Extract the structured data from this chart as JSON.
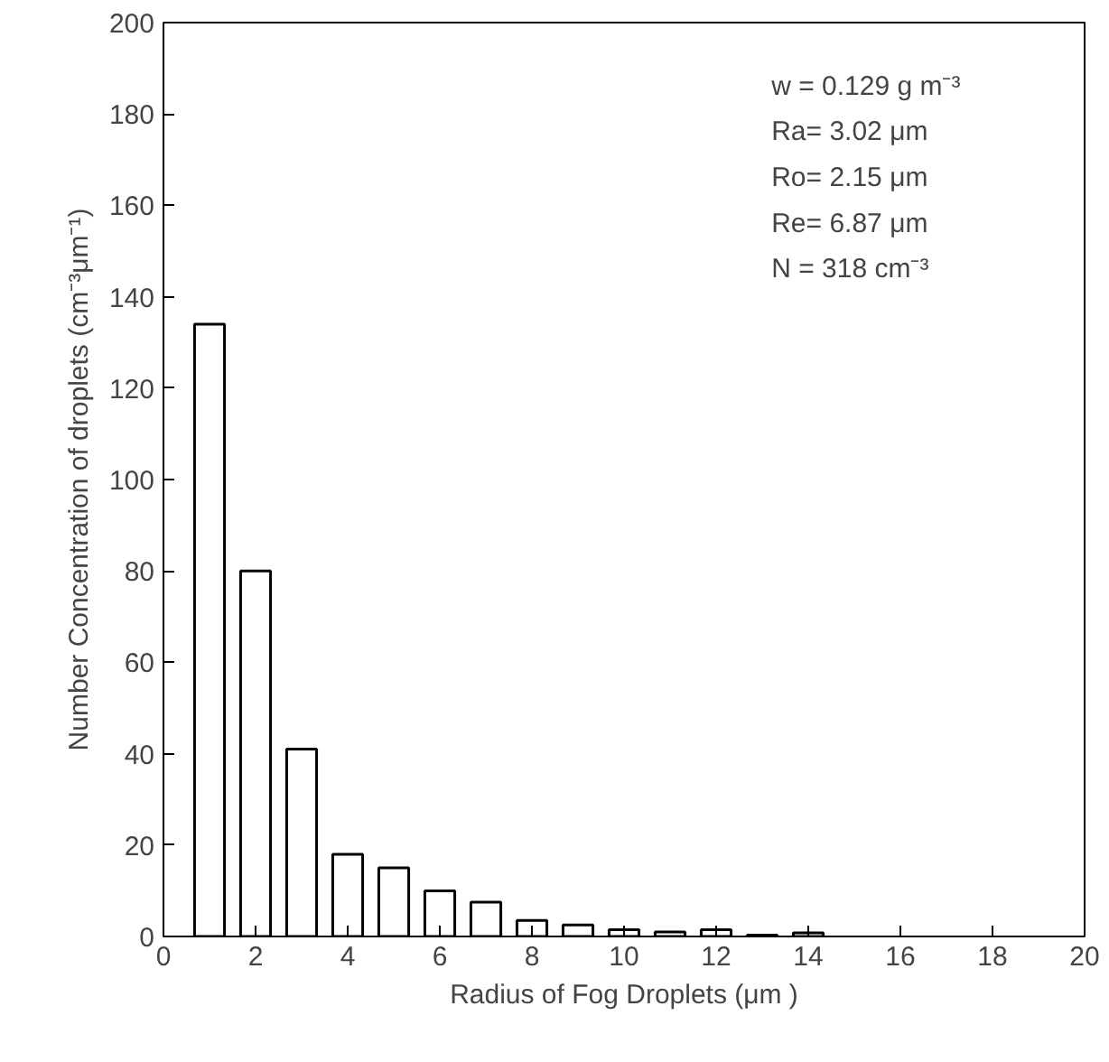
{
  "chart_data": {
    "type": "bar",
    "xlabel": "Radius of Fog Droplets (μm )",
    "ylabel": "Number Concentration of droplets (cm⁻³μm⁻¹)",
    "x": [
      1,
      2,
      3,
      4,
      5,
      6,
      7,
      8,
      9,
      10,
      11,
      12,
      13,
      14
    ],
    "values": [
      134,
      80,
      41,
      18,
      15,
      10,
      7.5,
      3.5,
      2.5,
      1.5,
      1,
      1.5,
      0.3,
      0.8
    ],
    "color": "#ffffff",
    "xlim": [
      0,
      20
    ],
    "xticks": [
      0,
      2,
      4,
      6,
      8,
      10,
      12,
      14,
      16,
      18,
      20
    ],
    "ylim": [
      0,
      200
    ],
    "yticks": [
      0,
      20,
      40,
      60,
      80,
      100,
      120,
      140,
      160,
      180,
      200
    ],
    "grid": false,
    "annotations": [
      "w = 0.129 g  m⁻³",
      "Ra= 3.02 μm",
      "Ro= 2.15 μm",
      "Re= 6.87 μm",
      "N = 318  cm⁻³"
    ]
  }
}
